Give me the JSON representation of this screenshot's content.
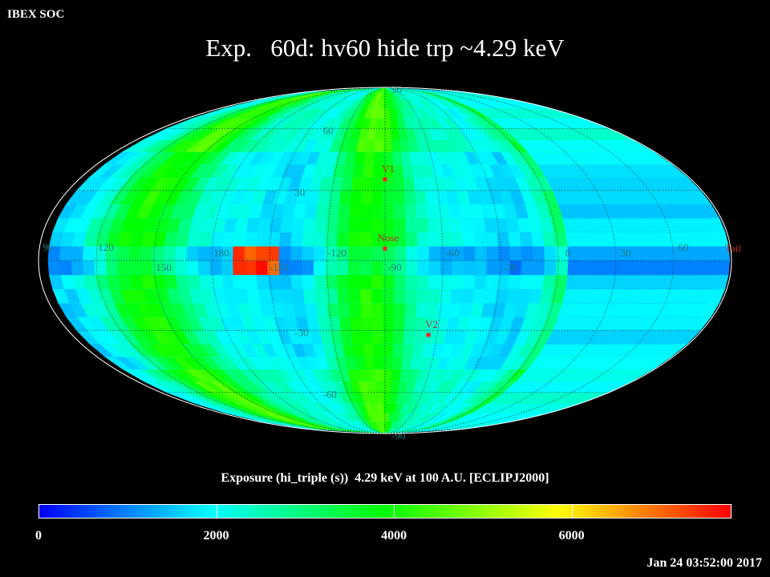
{
  "header": {
    "org": "IBEX SOC",
    "title": "Exp.   60d: hv60 hide trp ~4.29 keV"
  },
  "map": {
    "projection": "Mollweide (ecliptic J2000)",
    "lat_labels": [
      "90",
      "60",
      "30",
      "-30",
      "-60",
      "-90"
    ],
    "lon_labels": [
      "60",
      "30",
      "0",
      "-30",
      "-60",
      "-90",
      "-120",
      "-150",
      "180",
      "150",
      "120",
      "90"
    ],
    "markers": [
      {
        "name": "V1",
        "lon": -95,
        "lat": 35
      },
      {
        "name": "Nose",
        "lon": -95,
        "lat": 5
      },
      {
        "name": "V2",
        "lon": -70,
        "lat": -32
      },
      {
        "name": "Tail",
        "lon": 85,
        "lat": 0
      }
    ],
    "colors": {
      "marker": "#ff2020",
      "label": "#c0302a",
      "grid_label": "#1f7f7f"
    }
  },
  "colorbar": {
    "title": "Exposure (hi_triple (s))  4.29 keV at 100 A.U. [ECLIPJ2000]",
    "min": 0,
    "max": 7800,
    "ticks": [
      "0",
      "2000",
      "4000",
      "6000"
    ],
    "tick_values": [
      0,
      2000,
      4000,
      6000
    ],
    "stops": [
      "#0000ff",
      "#00ffff",
      "#00ff00",
      "#ffff00",
      "#ff0000"
    ]
  },
  "footer": {
    "timestamp": "Jan 24 03:52:00 2017"
  }
}
